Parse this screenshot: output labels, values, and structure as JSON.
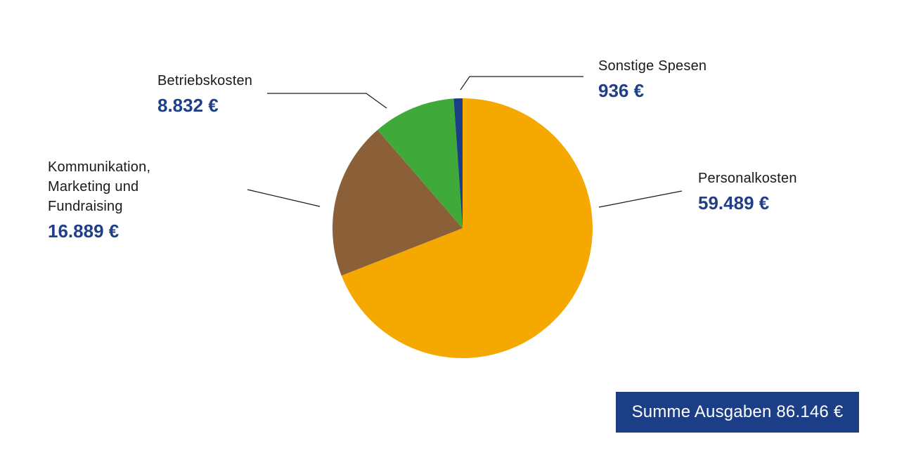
{
  "chart_data": {
    "type": "pie",
    "slices": [
      {
        "label": "Personalkosten",
        "value": 59489,
        "value_label": "59.489 €",
        "color": "#f5a800"
      },
      {
        "label": "Kommunikation,\nMarketing und\nFundraising",
        "value": 16889,
        "value_label": "16.889 €",
        "color": "#8b6039"
      },
      {
        "label": "Betriebskosten",
        "value": 8832,
        "value_label": "8.832 €",
        "color": "#3faa3a"
      },
      {
        "label": "Sonstige Spesen",
        "value": 936,
        "value_label": "936 €",
        "color": "#1b3e86"
      }
    ],
    "total_label": "Summe Ausgaben 86.146  €"
  },
  "colors": {
    "value_text": "#1f3f87",
    "total_box": "#1b3e86"
  }
}
